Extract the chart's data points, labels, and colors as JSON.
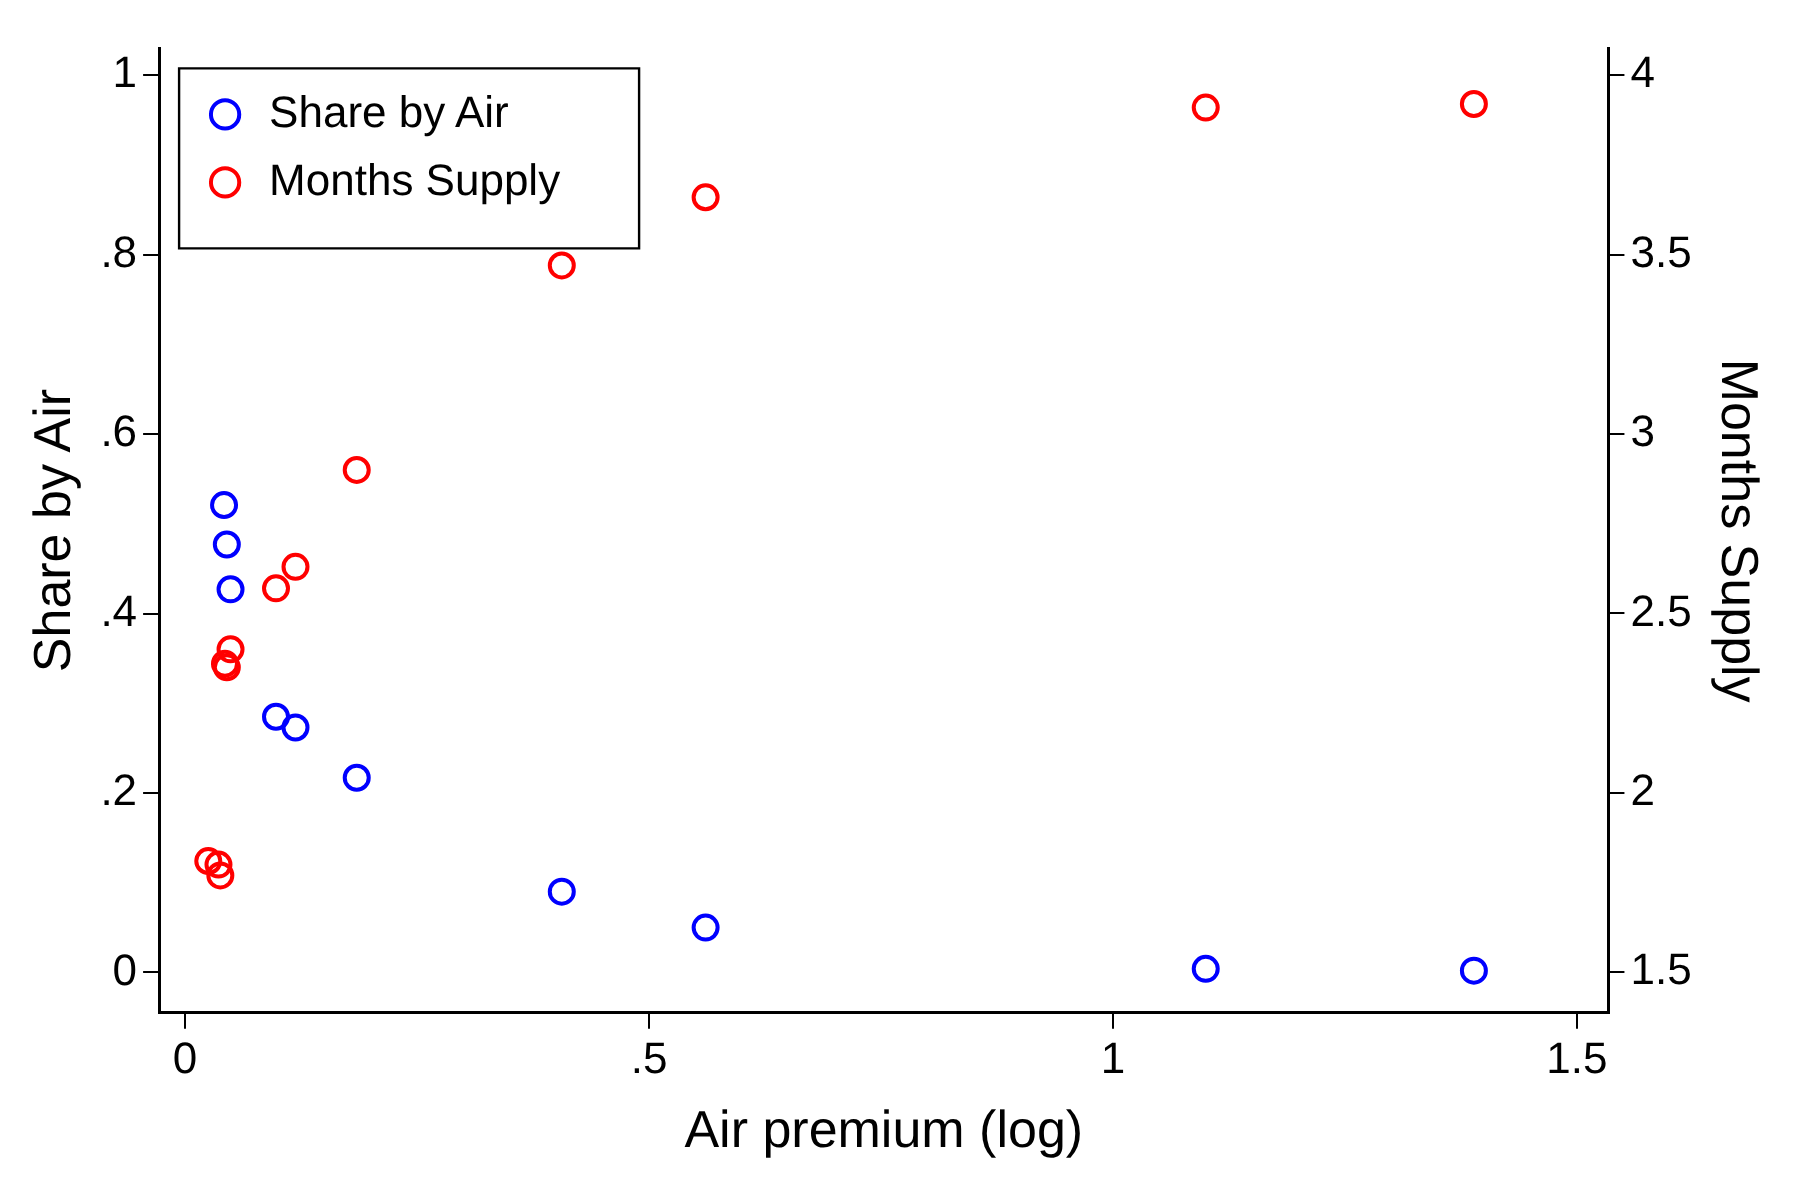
{
  "chart_data": {
    "type": "scatter",
    "xlabel": "Air premium (log)",
    "ylabel": "Share by Air",
    "y2label": "Months Supply",
    "xlim": [
      -0.028,
      1.534
    ],
    "xticks": [
      0,
      {
        "value": 0.5,
        "label": ".5"
      },
      1,
      1.5
    ],
    "ylim": [
      -0.045,
      1.03
    ],
    "yticks": [
      0,
      {
        "value": 0.2,
        "label": ".2"
      },
      {
        "value": 0.4,
        "label": ".4"
      },
      {
        "value": 0.6,
        "label": ".6"
      },
      {
        "value": 0.8,
        "label": ".8"
      },
      1
    ],
    "y2lim": [
      1.387,
      4.075
    ],
    "y2ticks": [
      1.5,
      2,
      2.5,
      3,
      3.5,
      4
    ],
    "marker": "circle",
    "legend": "top left",
    "grid": false,
    "series": [
      {
        "name": "Share by Air",
        "color": "#0000ff",
        "x": [
          0.042,
          0.045,
          0.049,
          0.098,
          0.119,
          0.185,
          0.406,
          0.561,
          1.1,
          1.389
        ],
        "values": [
          0.521,
          0.477,
          0.427,
          0.285,
          0.273,
          0.217,
          0.09,
          0.05,
          0.004,
          0.002
        ]
      },
      {
        "name": "Months Supply",
        "color": "#ff0000",
        "axis": "y2",
        "x": [
          0.025,
          0.036,
          0.038,
          0.049,
          0.043,
          0.045,
          0.098,
          0.119,
          0.185,
          0.406,
          0.561,
          1.1,
          1.389
        ],
        "values": [
          1.81,
          1.8,
          1.77,
          2.4,
          2.36,
          2.35,
          2.57,
          2.63,
          2.9,
          3.47,
          3.66,
          3.91,
          3.92
        ]
      }
    ]
  }
}
